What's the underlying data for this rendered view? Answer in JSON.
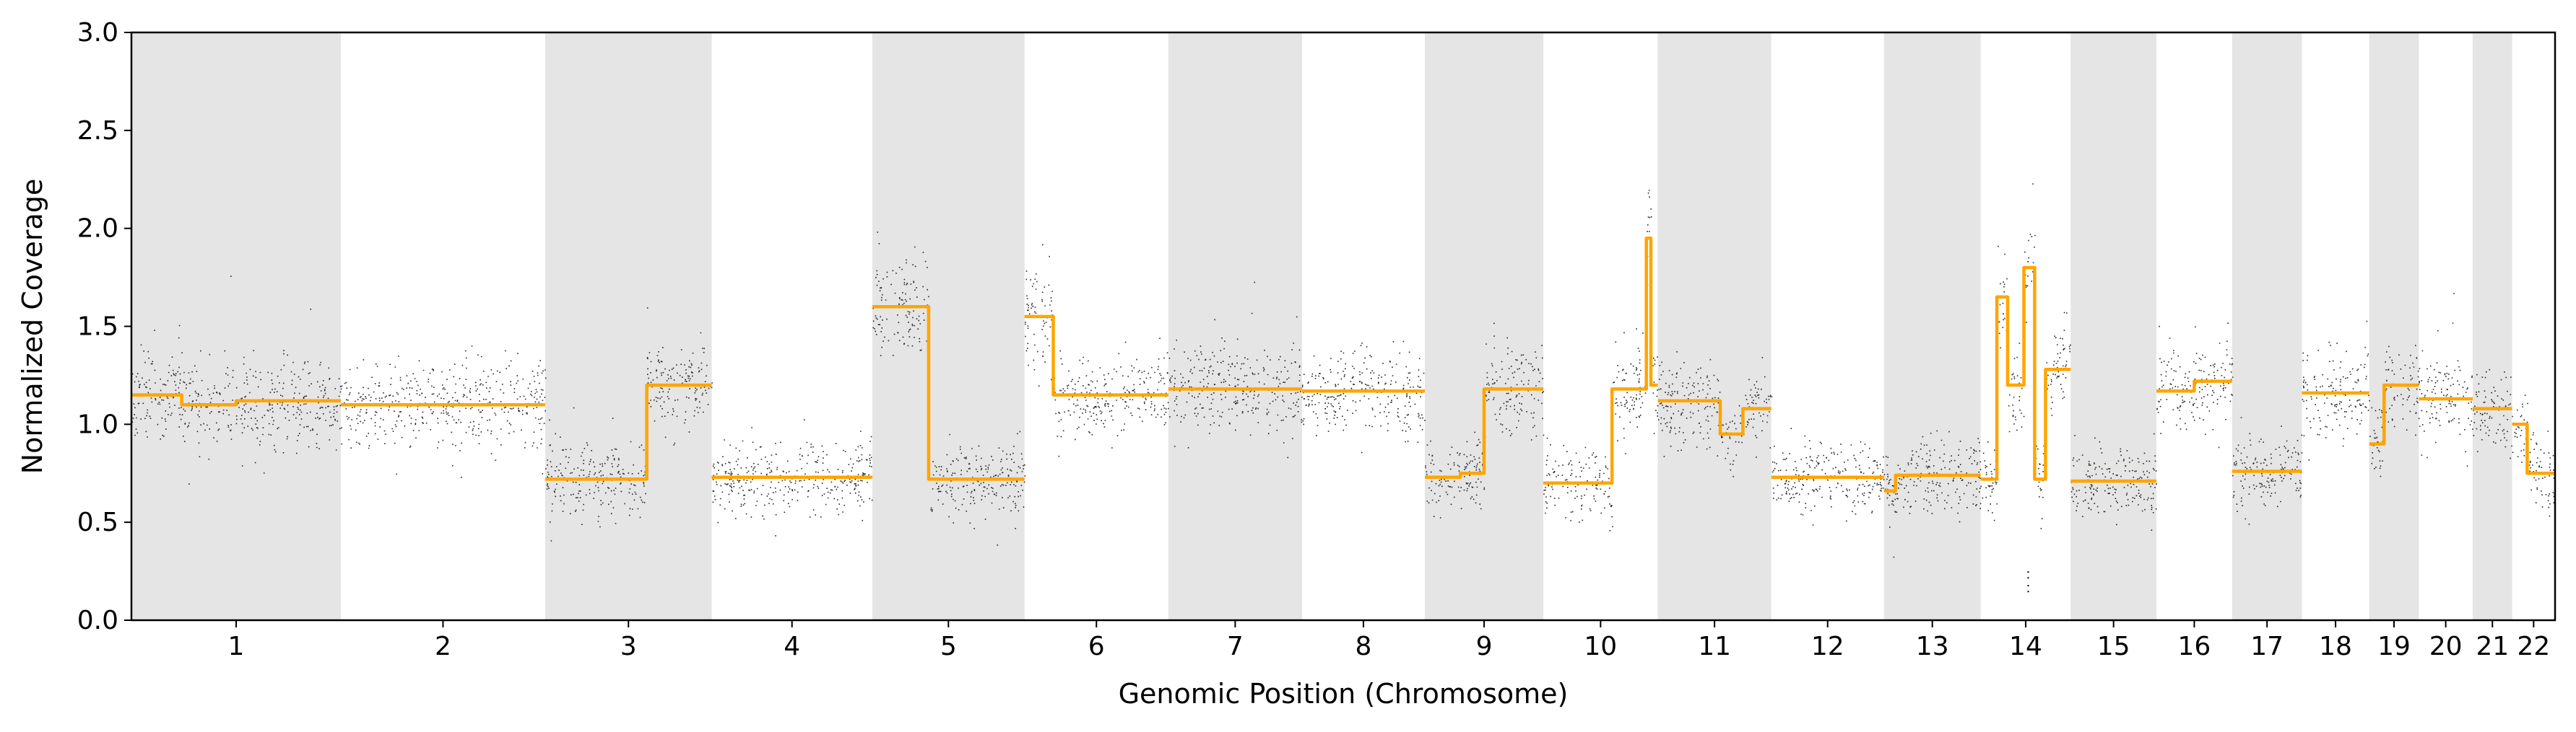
{
  "chart_data": {
    "type": "scatter",
    "title": "",
    "xlabel": "Genomic Position (Chromosome)",
    "ylabel": "Normalized Coverage",
    "ylim": [
      0,
      3.0
    ],
    "yticks": [
      "0.0",
      "0.5",
      "1.0",
      "1.5",
      "2.0",
      "2.5",
      "3.0"
    ],
    "grid": false,
    "legend": "none",
    "colors": {
      "points": "#000000",
      "segment_line": "#FFA500",
      "shade": "#e5e5e5"
    },
    "chromosomes": [
      {
        "name": "1",
        "length_mb": 249,
        "shaded": true,
        "segments": [
          [
            0,
            0.24,
            1.15
          ],
          [
            0.24,
            0.5,
            1.1
          ],
          [
            0.5,
            1.0,
            1.12
          ]
        ]
      },
      {
        "name": "2",
        "length_mb": 243,
        "shaded": false,
        "segments": [
          [
            0,
            1.0,
            1.1
          ]
        ]
      },
      {
        "name": "3",
        "length_mb": 198,
        "shaded": true,
        "segments": [
          [
            0,
            0.61,
            0.72
          ],
          [
            0.61,
            1.0,
            1.2
          ]
        ]
      },
      {
        "name": "4",
        "length_mb": 191,
        "shaded": false,
        "segments": [
          [
            0,
            1.0,
            0.73
          ]
        ]
      },
      {
        "name": "5",
        "length_mb": 181,
        "shaded": true,
        "segments": [
          [
            0,
            0.37,
            1.6
          ],
          [
            0.37,
            1.0,
            0.72
          ]
        ]
      },
      {
        "name": "6",
        "length_mb": 171,
        "shaded": false,
        "segments": [
          [
            0,
            0.2,
            1.55
          ],
          [
            0.2,
            1.0,
            1.15
          ]
        ]
      },
      {
        "name": "7",
        "length_mb": 159,
        "shaded": true,
        "segments": [
          [
            0,
            1.0,
            1.18
          ]
        ]
      },
      {
        "name": "8",
        "length_mb": 146,
        "shaded": false,
        "segments": [
          [
            0,
            1.0,
            1.17
          ]
        ]
      },
      {
        "name": "9",
        "length_mb": 141,
        "shaded": true,
        "segments": [
          [
            0,
            0.3,
            0.73
          ],
          [
            0.3,
            0.5,
            0.75
          ],
          [
            0.5,
            1.0,
            1.18
          ]
        ]
      },
      {
        "name": "10",
        "length_mb": 136,
        "shaded": false,
        "segments": [
          [
            0,
            0.6,
            0.7
          ],
          [
            0.6,
            0.9,
            1.18
          ],
          [
            0.9,
            0.94,
            1.95
          ],
          [
            0.94,
            1.0,
            1.2
          ]
        ]
      },
      {
        "name": "11",
        "length_mb": 135,
        "shaded": true,
        "segments": [
          [
            0,
            0.55,
            1.12
          ],
          [
            0.55,
            0.75,
            0.95
          ],
          [
            0.75,
            1.0,
            1.08
          ]
        ]
      },
      {
        "name": "12",
        "length_mb": 134,
        "shaded": false,
        "segments": [
          [
            0,
            1.0,
            0.73
          ]
        ]
      },
      {
        "name": "13",
        "length_mb": 115,
        "shaded": true,
        "segments": [
          [
            0,
            0.12,
            0.66
          ],
          [
            0.12,
            1.0,
            0.74
          ]
        ]
      },
      {
        "name": "14",
        "length_mb": 107,
        "shaded": false,
        "segments": [
          [
            0,
            0.18,
            0.72
          ],
          [
            0.18,
            0.3,
            1.65
          ],
          [
            0.3,
            0.48,
            1.2
          ],
          [
            0.48,
            0.6,
            1.8
          ],
          [
            0.6,
            0.72,
            0.72
          ],
          [
            0.72,
            1.0,
            1.28
          ]
        ]
      },
      {
        "name": "15",
        "length_mb": 102,
        "shaded": true,
        "segments": [
          [
            0,
            1.0,
            0.71
          ]
        ]
      },
      {
        "name": "16",
        "length_mb": 90,
        "shaded": false,
        "segments": [
          [
            0,
            0.5,
            1.17
          ],
          [
            0.5,
            1.0,
            1.22
          ]
        ]
      },
      {
        "name": "17",
        "length_mb": 83,
        "shaded": true,
        "segments": [
          [
            0,
            1.0,
            0.76
          ]
        ]
      },
      {
        "name": "18",
        "length_mb": 80,
        "shaded": false,
        "segments": [
          [
            0,
            1.0,
            1.16
          ]
        ]
      },
      {
        "name": "19",
        "length_mb": 59,
        "shaded": true,
        "segments": [
          [
            0,
            0.3,
            0.9
          ],
          [
            0.3,
            1.0,
            1.2
          ]
        ]
      },
      {
        "name": "20",
        "length_mb": 64,
        "shaded": false,
        "segments": [
          [
            0,
            1.0,
            1.13
          ]
        ]
      },
      {
        "name": "21",
        "length_mb": 47,
        "shaded": true,
        "segments": [
          [
            0,
            1.0,
            1.08
          ]
        ]
      },
      {
        "name": "22",
        "length_mb": 51,
        "shaded": false,
        "segments": [
          [
            0,
            0.35,
            1.0
          ],
          [
            0.35,
            1.0,
            0.75
          ]
        ]
      }
    ],
    "outliers": [
      {
        "chrom": "14",
        "pos": 0.52,
        "values": [
          0.15,
          0.18,
          0.22,
          0.25
        ]
      }
    ]
  }
}
